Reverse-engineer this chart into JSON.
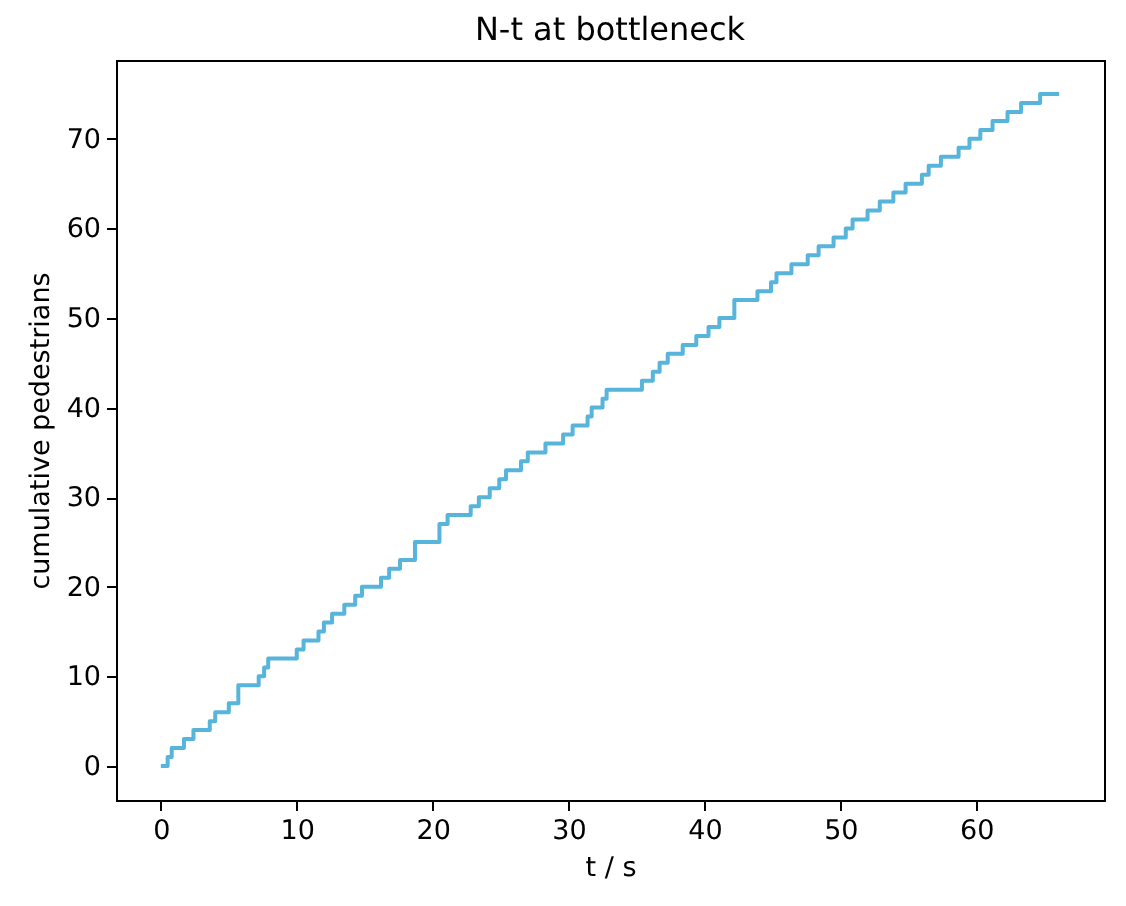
{
  "chart_data": {
    "type": "step",
    "title": "N-t at bottleneck",
    "xlabel": "t / s",
    "ylabel": "cumulative pedestrians",
    "x": [
      0,
      0.5,
      0.8,
      1.7,
      2.4,
      3.6,
      4.0,
      5.0,
      5.7,
      7.2,
      7.6,
      7.9,
      10.0,
      10.5,
      11.6,
      12.0,
      12.6,
      13.5,
      14.3,
      14.8,
      16.2,
      16.8,
      17.6,
      18.7,
      20.5,
      21.1,
      22.8,
      23.4,
      24.2,
      24.9,
      25.4,
      26.5,
      27.0,
      28.3,
      29.6,
      30.3,
      31.4,
      31.7,
      32.5,
      32.8,
      35.4,
      36.2,
      36.7,
      37.3,
      38.4,
      39.4,
      40.3,
      41.1,
      42.2,
      43.9,
      44.9,
      45.3,
      46.4,
      47.6,
      48.4,
      49.5,
      50.4,
      50.9,
      52.0,
      52.9,
      53.9,
      54.8,
      56.0,
      56.5,
      57.4,
      58.7,
      59.5,
      60.3,
      61.2,
      62.3,
      63.3,
      64.7,
      66.1
    ],
    "values": [
      0,
      1,
      2,
      3,
      4,
      5,
      6,
      7,
      9,
      10,
      11,
      12,
      13,
      14,
      15,
      16,
      17,
      18,
      19,
      20,
      21,
      22,
      23,
      25,
      27,
      28,
      29,
      30,
      31,
      32,
      33,
      34,
      35,
      36,
      37,
      38,
      39,
      40,
      41,
      42,
      43,
      44,
      45,
      46,
      47,
      48,
      49,
      50,
      52,
      53,
      54,
      55,
      56,
      57,
      58,
      59,
      60,
      61,
      62,
      63,
      64,
      65,
      66,
      67,
      68,
      69,
      70,
      71,
      72,
      73,
      74,
      75,
      75
    ],
    "color": "#57b4db",
    "xlim": [
      -3.3,
      69.4
    ],
    "ylim": [
      -3.8,
      78.8
    ],
    "xticks": [
      0,
      10,
      20,
      30,
      40,
      50,
      60
    ],
    "yticks": [
      0,
      10,
      20,
      30,
      40,
      50,
      60,
      70
    ]
  }
}
